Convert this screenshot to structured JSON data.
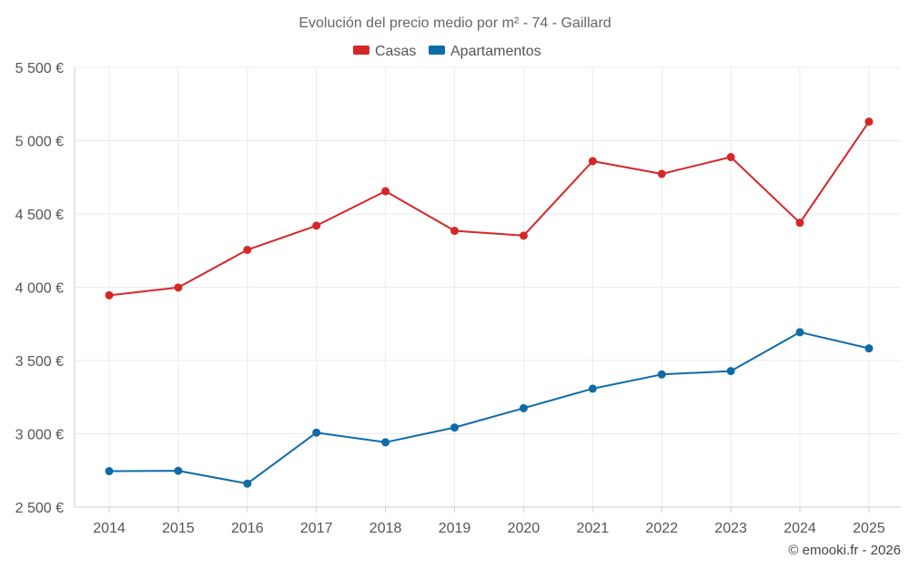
{
  "chart_data": {
    "type": "line",
    "title": "Evolución del precio medio por m² - 74 - Gaillard",
    "categories": [
      "2014",
      "2015",
      "2016",
      "2017",
      "2018",
      "2019",
      "2020",
      "2021",
      "2022",
      "2023",
      "2024",
      "2025"
    ],
    "series": [
      {
        "name": "Casas",
        "color": "#d62728",
        "values": [
          3945,
          3998,
          4255,
          4420,
          4655,
          4385,
          4352,
          4860,
          4773,
          4888,
          4440,
          5130
        ]
      },
      {
        "name": "Apartamentos",
        "color": "#0e6ba8",
        "values": [
          2745,
          2748,
          2660,
          3008,
          2942,
          3043,
          3175,
          3308,
          3405,
          3428,
          3693,
          3583
        ]
      }
    ],
    "yticks": [
      2500,
      3000,
      3500,
      4000,
      4500,
      5000,
      5500
    ],
    "ytick_labels": [
      "2 500 €",
      "3 000 €",
      "3 500 €",
      "4 000 €",
      "4 500 €",
      "5 000 €",
      "5 500 €"
    ],
    "ylim": [
      2500,
      5500
    ],
    "xlabel": "",
    "ylabel": "",
    "legend_position": "top-center",
    "grid": true
  },
  "credit": "© emooki.fr - 2026"
}
